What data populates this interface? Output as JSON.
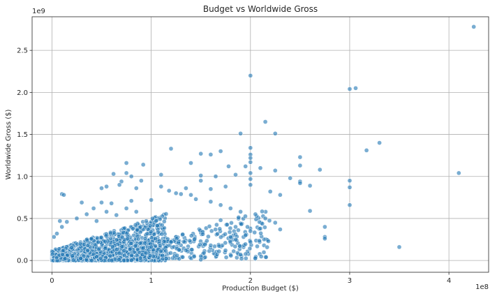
{
  "chart_data": {
    "type": "scatter",
    "title": "Budget vs Worldwide Gross",
    "xlabel": "Production Budget ($)",
    "ylabel": "Worldwide Gross ($)",
    "x_offset_label": "1e8",
    "y_offset_label": "1e9",
    "x_unit_scale": 100000000,
    "y_unit_scale": 1000000000,
    "xlim": [
      -0.2,
      4.4
    ],
    "ylim": [
      -0.14,
      2.9
    ],
    "xticks": [
      0,
      1,
      2,
      3,
      4
    ],
    "xtick_labels": [
      "0",
      "1",
      "2",
      "3",
      "4"
    ],
    "yticks": [
      0.0,
      0.5,
      1.0,
      1.5,
      2.0,
      2.5
    ],
    "ytick_labels": [
      "0.0",
      "0.5",
      "1.0",
      "1.5",
      "2.0",
      "2.5"
    ],
    "grid": true,
    "color": "#1f77b4",
    "points": [
      [
        4.25,
        2.78
      ],
      [
        2.0,
        2.2
      ],
      [
        3.06,
        2.05
      ],
      [
        3.0,
        2.04
      ],
      [
        2.15,
        1.65
      ],
      [
        1.9,
        1.51
      ],
      [
        2.25,
        1.51
      ],
      [
        3.3,
        1.4
      ],
      [
        3.17,
        1.31
      ],
      [
        1.5,
        1.27
      ],
      [
        1.2,
        1.33
      ],
      [
        2.0,
        1.34
      ],
      [
        1.6,
        1.26
      ],
      [
        1.7,
        1.3
      ],
      [
        1.4,
        1.16
      ],
      [
        0.75,
        1.16
      ],
      [
        0.92,
        1.14
      ],
      [
        2.5,
        1.23
      ],
      [
        2.0,
        1.26
      ],
      [
        2.0,
        1.22
      ],
      [
        2.0,
        1.17
      ],
      [
        1.95,
        1.12
      ],
      [
        2.1,
        1.1
      ],
      [
        1.78,
        1.12
      ],
      [
        2.7,
        1.08
      ],
      [
        2.25,
        1.07
      ],
      [
        4.1,
        1.04
      ],
      [
        1.1,
        1.02
      ],
      [
        0.62,
        1.03
      ],
      [
        0.75,
        1.04
      ],
      [
        0.8,
        1.0
      ],
      [
        1.5,
        1.01
      ],
      [
        1.65,
        1.0
      ],
      [
        1.85,
        1.02
      ],
      [
        2.0,
        1.04
      ],
      [
        2.0,
        0.97
      ],
      [
        2.4,
        0.98
      ],
      [
        2.5,
        0.94
      ],
      [
        2.5,
        0.92
      ],
      [
        2.5,
        1.13
      ],
      [
        2.6,
        0.89
      ],
      [
        3.0,
        0.95
      ],
      [
        3.0,
        0.87
      ],
      [
        0.9,
        0.95
      ],
      [
        0.85,
        0.86
      ],
      [
        0.7,
        0.94
      ],
      [
        0.68,
        0.9
      ],
      [
        0.55,
        0.88
      ],
      [
        0.5,
        0.86
      ],
      [
        1.35,
        0.86
      ],
      [
        1.5,
        0.95
      ],
      [
        1.25,
        0.8
      ],
      [
        1.6,
        0.85
      ],
      [
        1.75,
        0.88
      ],
      [
        2.0,
        0.9
      ],
      [
        2.2,
        0.82
      ],
      [
        2.3,
        0.78
      ],
      [
        2.6,
        0.59
      ],
      [
        3.0,
        0.66
      ],
      [
        3.5,
        0.16
      ],
      [
        2.75,
        0.4
      ],
      [
        2.75,
        0.28
      ],
      [
        2.75,
        0.26
      ],
      [
        0.1,
        0.79
      ],
      [
        0.12,
        0.78
      ],
      [
        0.05,
        0.32
      ],
      [
        0.02,
        0.28
      ],
      [
        0.3,
        0.69
      ],
      [
        0.42,
        0.62
      ],
      [
        0.5,
        0.69
      ],
      [
        0.6,
        0.68
      ],
      [
        0.8,
        0.71
      ],
      [
        1.0,
        0.72
      ],
      [
        1.1,
        0.88
      ],
      [
        1.18,
        0.83
      ],
      [
        1.3,
        0.79
      ],
      [
        1.4,
        0.78
      ],
      [
        1.45,
        0.73
      ],
      [
        1.6,
        0.7
      ],
      [
        1.7,
        0.66
      ],
      [
        1.8,
        0.62
      ],
      [
        1.9,
        0.58
      ],
      [
        2.05,
        0.55
      ],
      [
        2.15,
        0.5
      ],
      [
        2.25,
        0.45
      ],
      [
        2.3,
        0.37
      ],
      [
        2.0,
        0.22
      ],
      [
        1.8,
        0.28
      ],
      [
        1.6,
        0.18
      ],
      [
        1.5,
        0.05
      ],
      [
        1.5,
        0.01
      ],
      [
        1.35,
        0.12
      ],
      [
        1.2,
        0.22
      ],
      [
        1.0,
        0.16
      ],
      [
        0.95,
        0.47
      ],
      [
        0.85,
        0.58
      ],
      [
        0.75,
        0.62
      ],
      [
        0.65,
        0.54
      ],
      [
        0.55,
        0.58
      ],
      [
        0.45,
        0.47
      ],
      [
        0.35,
        0.55
      ],
      [
        0.25,
        0.5
      ],
      [
        0.15,
        0.46
      ],
      [
        0.1,
        0.4
      ],
      [
        0.08,
        0.47
      ],
      [
        1.7,
        0.48
      ],
      [
        1.85,
        0.4
      ],
      [
        2.0,
        0.35
      ],
      [
        2.1,
        0.38
      ],
      [
        1.95,
        0.3
      ]
    ]
  }
}
